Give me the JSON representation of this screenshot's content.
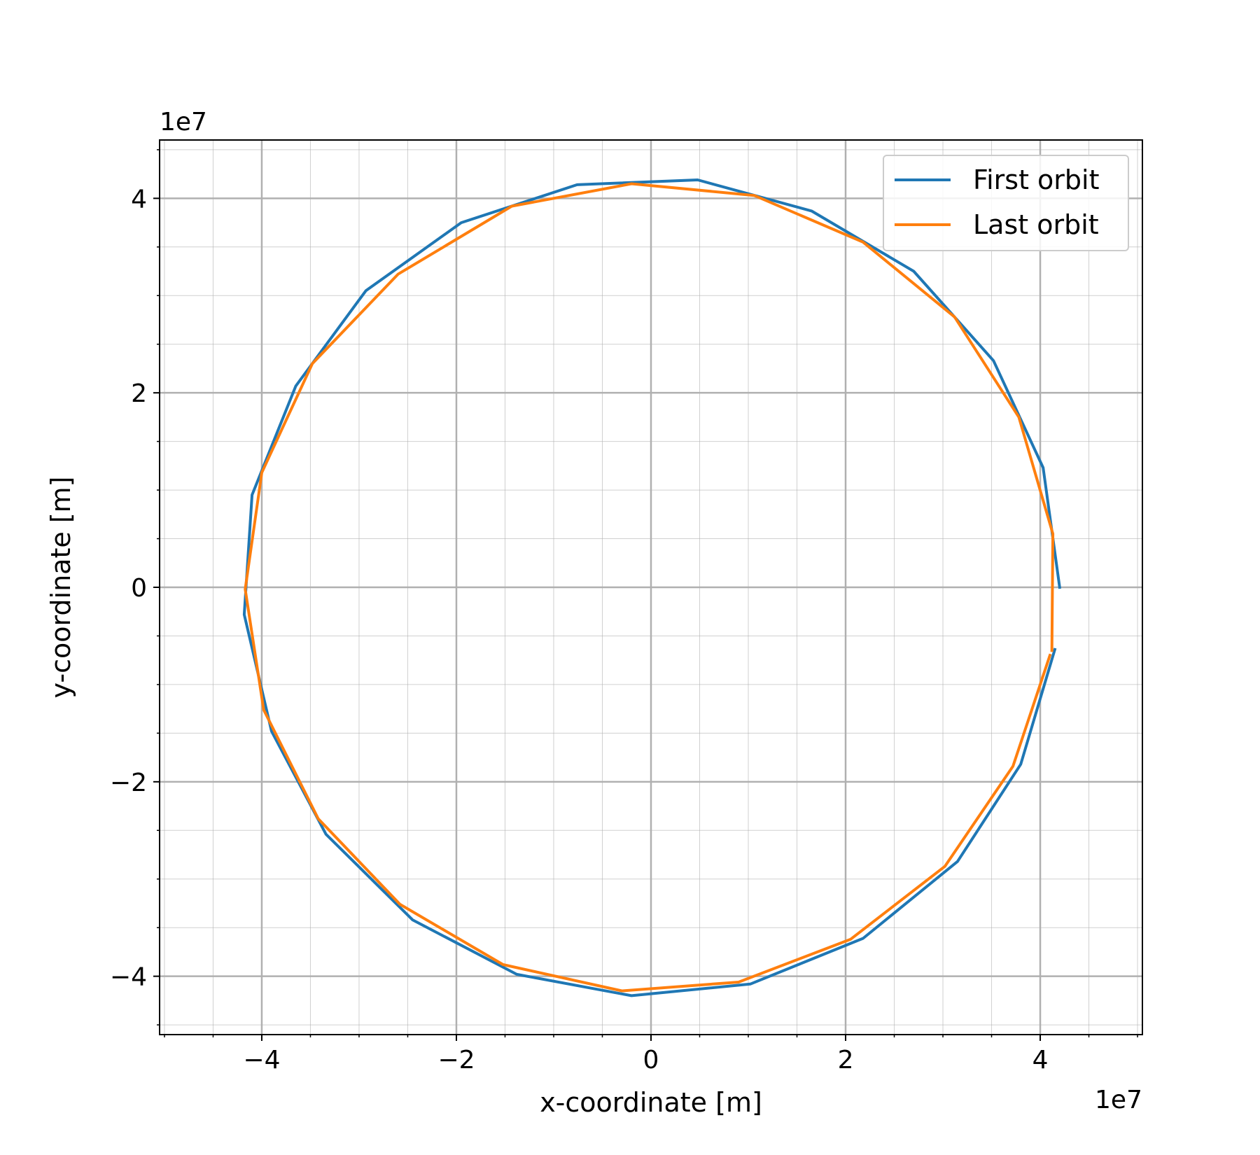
{
  "chart_data": {
    "type": "line",
    "title": "",
    "xlabel": "x-coordinate [m]",
    "ylabel": "y-coordinate [m]",
    "x_offset_label": "1e7",
    "y_offset_label": "1e7",
    "xlim": [
      -5.05,
      5.05
    ],
    "ylim": [
      -4.6,
      4.6
    ],
    "x_ticks": [
      -4,
      -2,
      0,
      2,
      4
    ],
    "y_ticks": [
      -4,
      -2,
      0,
      2,
      4
    ],
    "x_tick_labels": [
      "−4",
      "−2",
      "0",
      "2",
      "4"
    ],
    "y_tick_labels": [
      "−4",
      "−2",
      "0",
      "2",
      "4"
    ],
    "grid": "major and minor",
    "legend_position": "top-right",
    "series": [
      {
        "name": "First orbit",
        "color": "#1f77b4",
        "points": [
          [
            4.2,
            0.0
          ],
          [
            4.03,
            1.23
          ],
          [
            3.52,
            2.33
          ],
          [
            2.7,
            3.25
          ],
          [
            1.65,
            3.87
          ],
          [
            0.48,
            4.19
          ],
          [
            -0.76,
            4.14
          ],
          [
            -1.95,
            3.75
          ],
          [
            -2.93,
            3.05
          ],
          [
            -3.65,
            2.07
          ],
          [
            -4.1,
            0.95
          ],
          [
            -4.18,
            -0.28
          ],
          [
            -3.9,
            -1.48
          ],
          [
            -3.34,
            -2.54
          ],
          [
            -2.45,
            -3.42
          ],
          [
            -1.38,
            -3.98
          ],
          [
            -0.2,
            -4.2
          ],
          [
            1.02,
            -4.08
          ],
          [
            2.18,
            -3.61
          ],
          [
            3.15,
            -2.82
          ],
          [
            3.8,
            -1.82
          ],
          [
            4.15,
            -0.64
          ]
        ]
      },
      {
        "name": "Last orbit",
        "color": "#ff7f0e",
        "points": [
          [
            4.12,
            -0.65
          ],
          [
            4.13,
            0.55
          ],
          [
            3.78,
            1.75
          ],
          [
            3.12,
            2.78
          ],
          [
            2.18,
            3.55
          ],
          [
            1.06,
            4.03
          ],
          [
            -0.2,
            4.15
          ],
          [
            -1.43,
            3.92
          ],
          [
            -2.6,
            3.22
          ],
          [
            -3.48,
            2.3
          ],
          [
            -4.0,
            1.18
          ],
          [
            -4.17,
            -0.02
          ],
          [
            -3.98,
            -1.26
          ],
          [
            -3.42,
            -2.38
          ],
          [
            -2.58,
            -3.26
          ],
          [
            -1.52,
            -3.88
          ],
          [
            -0.3,
            -4.15
          ],
          [
            0.9,
            -4.06
          ],
          [
            2.05,
            -3.62
          ],
          [
            3.02,
            -2.87
          ],
          [
            3.72,
            -1.84
          ],
          [
            4.1,
            -0.7
          ]
        ]
      }
    ]
  }
}
